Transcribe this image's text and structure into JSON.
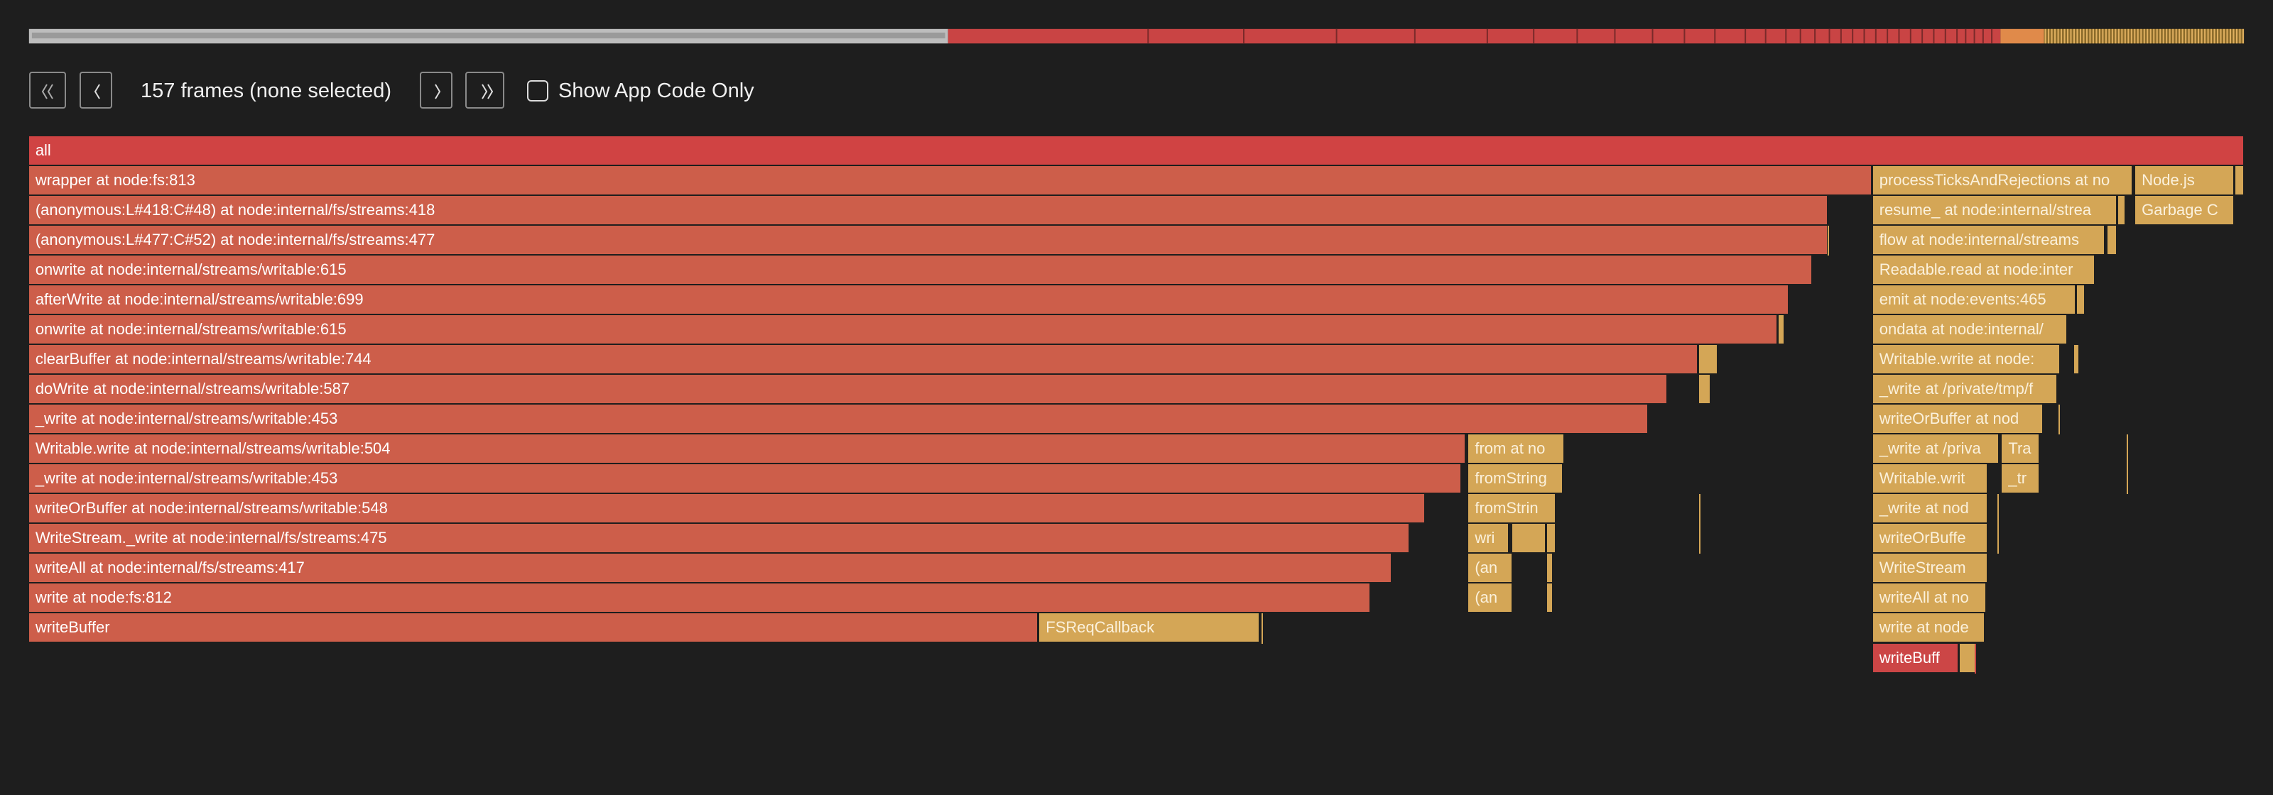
{
  "toolbar": {
    "frame_count": "157 frames (none selected)",
    "checkbox_label": "Show App Code Only"
  },
  "flame_graph": {
    "frames": [
      {
        "label": "all"
      },
      {
        "label": "wrapper at node:fs:813"
      },
      {
        "label": "processTicksAndRejections at no"
      },
      {
        "label": "Node.js"
      },
      {
        "label": "(anonymous:L#418:C#48) at node:internal/fs/streams:418"
      },
      {
        "label": "resume_ at node:internal/strea"
      },
      {
        "label": "Garbage C"
      },
      {
        "label": "(anonymous:L#477:C#52) at node:internal/fs/streams:477"
      },
      {
        "label": "flow at node:internal/streams"
      },
      {
        "label": "onwrite at node:internal/streams/writable:615"
      },
      {
        "label": "Readable.read at node:inter"
      },
      {
        "label": "afterWrite at node:internal/streams/writable:699"
      },
      {
        "label": "emit at node:events:465"
      },
      {
        "label": "onwrite at node:internal/streams/writable:615"
      },
      {
        "label": "ondata at node:internal/"
      },
      {
        "label": "clearBuffer at node:internal/streams/writable:744"
      },
      {
        "label": "Writable.write at node:"
      },
      {
        "label": "doWrite at node:internal/streams/writable:587"
      },
      {
        "label": "_write at /private/tmp/f"
      },
      {
        "label": "_write at node:internal/streams/writable:453"
      },
      {
        "label": "writeOrBuffer at nod"
      },
      {
        "label": "Writable.write at node:internal/streams/writable:504"
      },
      {
        "label": "from at no"
      },
      {
        "label": "_write at /priva"
      },
      {
        "label": "Tra"
      },
      {
        "label": "_write at node:internal/streams/writable:453"
      },
      {
        "label": "fromString"
      },
      {
        "label": "Writable.writ"
      },
      {
        "label": "_tr"
      },
      {
        "label": "writeOrBuffer at node:internal/streams/writable:548"
      },
      {
        "label": "fromStrin"
      },
      {
        "label": "_write at nod"
      },
      {
        "label": "WriteStream._write at node:internal/fs/streams:475"
      },
      {
        "label": "wri"
      },
      {
        "label": "writeOrBuffe"
      },
      {
        "label": "writeAll at node:internal/fs/streams:417"
      },
      {
        "label": "(an"
      },
      {
        "label": "WriteStream"
      },
      {
        "label": "write at node:fs:812"
      },
      {
        "label": "(an"
      },
      {
        "label": "writeAll at no"
      },
      {
        "label": "writeBuffer"
      },
      {
        "label": "FSReqCallback"
      },
      {
        "label": "write at node"
      },
      {
        "label": "writeBuff"
      }
    ]
  }
}
